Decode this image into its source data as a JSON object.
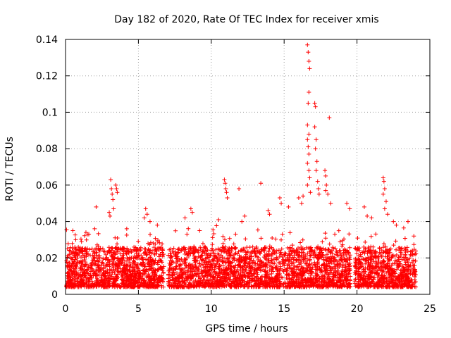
{
  "chart_data": {
    "type": "scatter",
    "title": "Day 182 of 2020, Rate Of TEC Index for receiver xmis",
    "xlabel": "GPS time / hours",
    "ylabel": "ROTI / TECUs",
    "xlim": [
      0,
      25
    ],
    "ylim": [
      0,
      0.14
    ],
    "x_ticks": [
      0,
      5,
      10,
      15,
      20,
      25
    ],
    "x_tick_labels": [
      "0",
      "5",
      "10",
      "15",
      "20",
      "25"
    ],
    "y_ticks": [
      0,
      0.02,
      0.04,
      0.06,
      0.08,
      0.1,
      0.12,
      0.14
    ],
    "y_tick_labels": [
      "0",
      "0.02",
      "0.04",
      "0.06",
      "0.08",
      "0.1",
      "0.12",
      "0.14"
    ],
    "grid": true,
    "marker": "plus",
    "marker_color": "#ff0000",
    "series": [
      {
        "name": "ROTI",
        "note": "dense band of points mostly between 0.005 and 0.03 TECU/min from ~0 to 24 h, with gaps near 6.7 h and 19.6 h",
        "points": [
          [
            3.1,
            0.063
          ],
          [
            3.15,
            0.058
          ],
          [
            3.2,
            0.055
          ],
          [
            3.25,
            0.052
          ],
          [
            3.3,
            0.047
          ],
          [
            3.45,
            0.06
          ],
          [
            3.5,
            0.058
          ],
          [
            3.55,
            0.056
          ],
          [
            3.0,
            0.045
          ],
          [
            3.05,
            0.043
          ],
          [
            2.1,
            0.048
          ],
          [
            1.4,
            0.034
          ],
          [
            1.6,
            0.033
          ],
          [
            2.0,
            0.036
          ],
          [
            5.5,
            0.047
          ],
          [
            5.6,
            0.044
          ],
          [
            5.4,
            0.042
          ],
          [
            5.8,
            0.04
          ],
          [
            8.2,
            0.042
          ],
          [
            8.6,
            0.047
          ],
          [
            8.7,
            0.045
          ],
          [
            10.5,
            0.041
          ],
          [
            10.9,
            0.063
          ],
          [
            10.95,
            0.061
          ],
          [
            11.0,
            0.058
          ],
          [
            11.05,
            0.056
          ],
          [
            11.1,
            0.053
          ],
          [
            11.9,
            0.058
          ],
          [
            12.1,
            0.04
          ],
          [
            12.3,
            0.043
          ],
          [
            13.4,
            0.061
          ],
          [
            13.9,
            0.046
          ],
          [
            14.0,
            0.044
          ],
          [
            14.7,
            0.053
          ],
          [
            14.8,
            0.05
          ],
          [
            15.3,
            0.048
          ],
          [
            16.0,
            0.053
          ],
          [
            16.2,
            0.05
          ],
          [
            16.3,
            0.054
          ],
          [
            16.6,
            0.137
          ],
          [
            16.65,
            0.133
          ],
          [
            16.7,
            0.128
          ],
          [
            16.75,
            0.124
          ],
          [
            16.7,
            0.111
          ],
          [
            16.65,
            0.105
          ],
          [
            16.6,
            0.093
          ],
          [
            16.7,
            0.088
          ],
          [
            16.6,
            0.085
          ],
          [
            16.65,
            0.081
          ],
          [
            16.7,
            0.077
          ],
          [
            16.6,
            0.072
          ],
          [
            16.7,
            0.068
          ],
          [
            16.75,
            0.064
          ],
          [
            16.6,
            0.06
          ],
          [
            16.8,
            0.056
          ],
          [
            17.1,
            0.105
          ],
          [
            17.15,
            0.103
          ],
          [
            17.1,
            0.092
          ],
          [
            17.2,
            0.085
          ],
          [
            17.15,
            0.08
          ],
          [
            17.25,
            0.073
          ],
          [
            17.2,
            0.068
          ],
          [
            17.3,
            0.062
          ],
          [
            17.35,
            0.058
          ],
          [
            17.4,
            0.055
          ],
          [
            17.8,
            0.068
          ],
          [
            17.85,
            0.065
          ],
          [
            17.9,
            0.06
          ],
          [
            17.85,
            0.057
          ],
          [
            18.1,
            0.097
          ],
          [
            18.0,
            0.055
          ],
          [
            18.2,
            0.05
          ],
          [
            19.3,
            0.05
          ],
          [
            19.5,
            0.047
          ],
          [
            20.5,
            0.048
          ],
          [
            20.7,
            0.043
          ],
          [
            21.0,
            0.042
          ],
          [
            21.8,
            0.064
          ],
          [
            21.85,
            0.062
          ],
          [
            21.9,
            0.058
          ],
          [
            21.8,
            0.055
          ],
          [
            22.0,
            0.051
          ],
          [
            21.9,
            0.047
          ],
          [
            22.1,
            0.044
          ],
          [
            22.5,
            0.04
          ],
          [
            22.7,
            0.038
          ],
          [
            23.5,
            0.04
          ],
          [
            23.9,
            0.032
          ],
          [
            0.5,
            0.035
          ],
          [
            0.7,
            0.03
          ],
          [
            4.2,
            0.036
          ],
          [
            6.3,
            0.038
          ],
          [
            9.2,
            0.035
          ]
        ]
      }
    ]
  }
}
